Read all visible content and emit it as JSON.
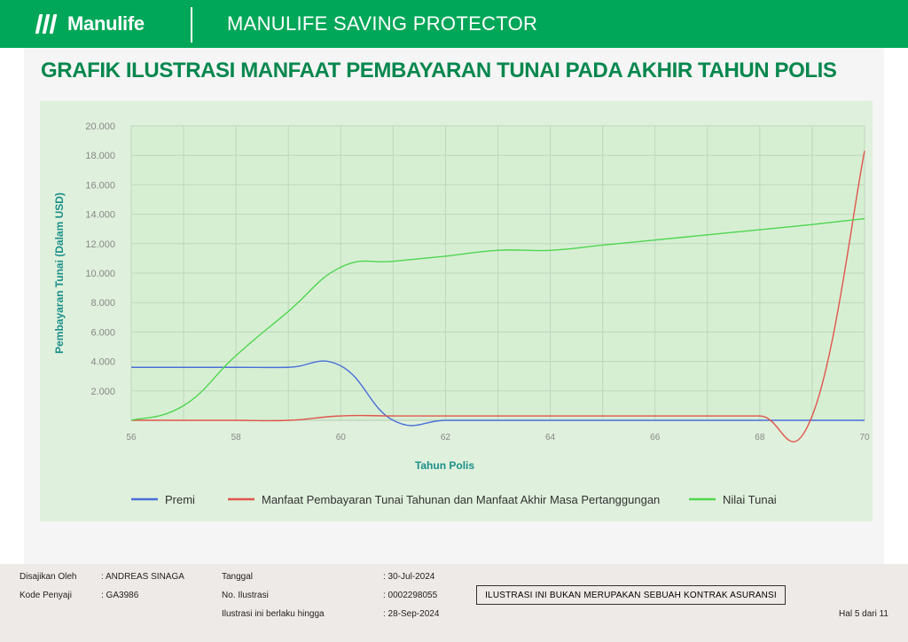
{
  "header": {
    "brand": "Manulife",
    "product_title": "MANULIFE SAVING PROTECTOR"
  },
  "page_heading": "GRAFIK ILUSTRASI MANFAAT PEMBAYARAN TUNAI PADA AKHIR TAHUN POLIS",
  "chart_data": {
    "type": "line",
    "xlabel": "Tahun Polis",
    "ylabel": "Pembayaran Tunai (Dalam USD)",
    "xlim": [
      56,
      70
    ],
    "ylim": [
      0,
      20000
    ],
    "x_ticks": [
      "56",
      "58",
      "60",
      "62",
      "64",
      "66",
      "68",
      "70"
    ],
    "y_ticks": [
      "2.000",
      "4.000",
      "6.000",
      "8.000",
      "10.000",
      "12.000",
      "14.000",
      "16.000",
      "18.000",
      "20.000"
    ],
    "grid": true,
    "legend_position": "bottom",
    "x": [
      56,
      57,
      58,
      59,
      60,
      61,
      62,
      63,
      64,
      65,
      66,
      67,
      68,
      69,
      70
    ],
    "series": [
      {
        "name": "Premi",
        "color": "#4a6fd8",
        "values": [
          3600,
          3600,
          3600,
          3600,
          3700,
          0,
          0,
          0,
          0,
          0,
          0,
          0,
          0,
          0,
          0
        ]
      },
      {
        "name": "Manfaat Pembayaran Tunai Tahunan dan Manfaat Akhir Masa Pertanggungan",
        "color": "#e0554d",
        "values": [
          0,
          0,
          0,
          0,
          300,
          300,
          300,
          300,
          300,
          300,
          300,
          300,
          300,
          300,
          18300
        ]
      },
      {
        "name": "Nilai Tunai",
        "color": "#4fd64f",
        "values": [
          0,
          1000,
          4400,
          7400,
          10400,
          10800,
          11150,
          11550,
          11550,
          11900,
          12250,
          12600,
          12950,
          13300,
          13700
        ]
      }
    ]
  },
  "footer": {
    "prepared_by_label": "Disajikan Oleh",
    "prepared_by_value": ": ANDREAS SINAGA",
    "presenter_code_label": "Kode Penyaji",
    "presenter_code_value": ": GA3986",
    "date_label": "Tanggal",
    "date_value": ": 30-Jul-2024",
    "illustration_no_label": "No. Ilustrasi",
    "illustration_no_value": ": 0002298055",
    "valid_until_label": "Ilustrasi ini berlaku hingga",
    "valid_until_value": ": 28-Sep-2024",
    "disclaimer": "ILUSTRASI INI BUKAN MERUPAKAN SEBUAH KONTRAK ASURANSI",
    "page_number": "Hal 5 dari 11"
  }
}
